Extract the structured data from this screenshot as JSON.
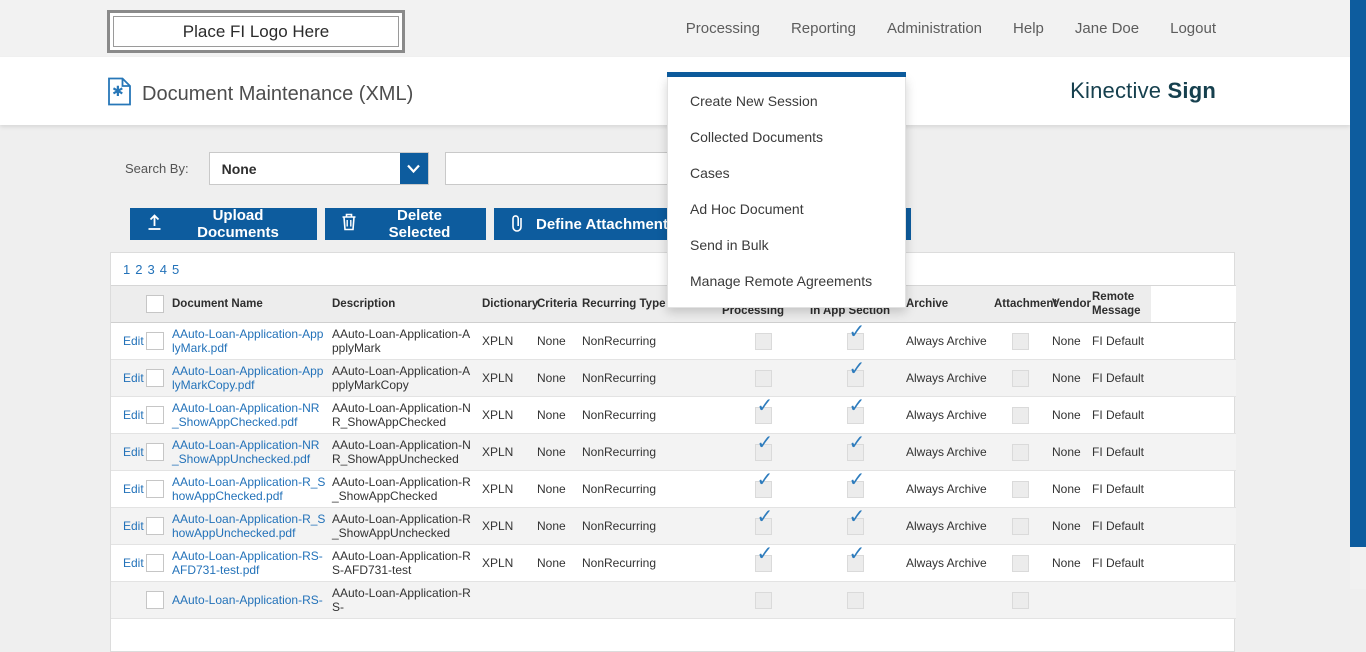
{
  "colors": {
    "accent": "#0d5c9e",
    "link": "#2372b9",
    "brand": "#16404e"
  },
  "topbar": {
    "logo_text": "Place FI Logo Here",
    "nav": [
      "Processing",
      "Reporting",
      "Administration",
      "Help",
      "Jane Doe",
      "Logout"
    ]
  },
  "header": {
    "title": "Document Maintenance (XML)",
    "brand_regular": "Kinective",
    "brand_bold": "Sign"
  },
  "processing_menu": {
    "items": [
      "Create New Session",
      "Collected Documents",
      "Cases",
      "Ad Hoc Document",
      "Send in Bulk",
      "Manage Remote Agreements"
    ]
  },
  "search": {
    "label": "Search By:",
    "selected_option": "None",
    "input_value": ""
  },
  "toolbar": {
    "upload_label": "Upload Documents",
    "delete_label": "Delete Selected",
    "define_label": "Define Attachment"
  },
  "pagination": {
    "pages": [
      "1",
      "2",
      "3",
      "4",
      "5"
    ]
  },
  "table": {
    "headers": [
      "Document Name",
      "Description",
      "Dictionary",
      "Criteria",
      "Recurring Type",
      "Display While Processing",
      "Show Other App In App Section",
      "Archive",
      "Attachment",
      "Vendor",
      "Remote Message"
    ],
    "rows": [
      {
        "edit": "Edit",
        "name": "AAuto-Loan-Application-ApplyMark.pdf",
        "desc": "AAuto-Loan-Application-ApplyMark",
        "dict": "XPLN",
        "criteria": "None",
        "recurring": "NonRecurring",
        "dwp": false,
        "soa": true,
        "archive": "Always Archive",
        "attach": false,
        "vendor": "None",
        "remote": "FI Default"
      },
      {
        "edit": "Edit",
        "name": "AAuto-Loan-Application-ApplyMarkCopy.pdf",
        "desc": "AAuto-Loan-Application-ApplyMarkCopy",
        "dict": "XPLN",
        "criteria": "None",
        "recurring": "NonRecurring",
        "dwp": false,
        "soa": true,
        "archive": "Always Archive",
        "attach": false,
        "vendor": "None",
        "remote": "FI Default"
      },
      {
        "edit": "Edit",
        "name": "AAuto-Loan-Application-NR_ShowAppChecked.pdf",
        "desc": "AAuto-Loan-Application-NR_ShowAppChecked",
        "dict": "XPLN",
        "criteria": "None",
        "recurring": "NonRecurring",
        "dwp": true,
        "soa": true,
        "archive": "Always Archive",
        "attach": false,
        "vendor": "None",
        "remote": "FI Default"
      },
      {
        "edit": "Edit",
        "name": "AAuto-Loan-Application-NR_ShowAppUnchecked.pdf",
        "desc": "AAuto-Loan-Application-NR_ShowAppUnchecked",
        "dict": "XPLN",
        "criteria": "None",
        "recurring": "NonRecurring",
        "dwp": true,
        "soa": true,
        "archive": "Always Archive",
        "attach": false,
        "vendor": "None",
        "remote": "FI Default"
      },
      {
        "edit": "Edit",
        "name": "AAuto-Loan-Application-R_ShowAppChecked.pdf",
        "desc": "AAuto-Loan-Application-R_ShowAppChecked",
        "dict": "XPLN",
        "criteria": "None",
        "recurring": "NonRecurring",
        "dwp": true,
        "soa": true,
        "archive": "Always Archive",
        "attach": false,
        "vendor": "None",
        "remote": "FI Default"
      },
      {
        "edit": "Edit",
        "name": "AAuto-Loan-Application-R_ShowAppUnchecked.pdf",
        "desc": "AAuto-Loan-Application-R_ShowAppUnchecked",
        "dict": "XPLN",
        "criteria": "None",
        "recurring": "NonRecurring",
        "dwp": true,
        "soa": true,
        "archive": "Always Archive",
        "attach": false,
        "vendor": "None",
        "remote": "FI Default"
      },
      {
        "edit": "Edit",
        "name": "AAuto-Loan-Application-RS-AFD731-test.pdf",
        "desc": "AAuto-Loan-Application-RS-AFD731-test",
        "dict": "XPLN",
        "criteria": "None",
        "recurring": "NonRecurring",
        "dwp": true,
        "soa": true,
        "archive": "Always Archive",
        "attach": false,
        "vendor": "None",
        "remote": "FI Default"
      },
      {
        "edit": "",
        "name": "AAuto-Loan-Application-RS-",
        "desc": "AAuto-Loan-Application-RS-",
        "dict": "",
        "criteria": "",
        "recurring": "",
        "dwp": false,
        "soa": false,
        "archive": "",
        "attach": false,
        "vendor": "",
        "remote": ""
      }
    ]
  }
}
